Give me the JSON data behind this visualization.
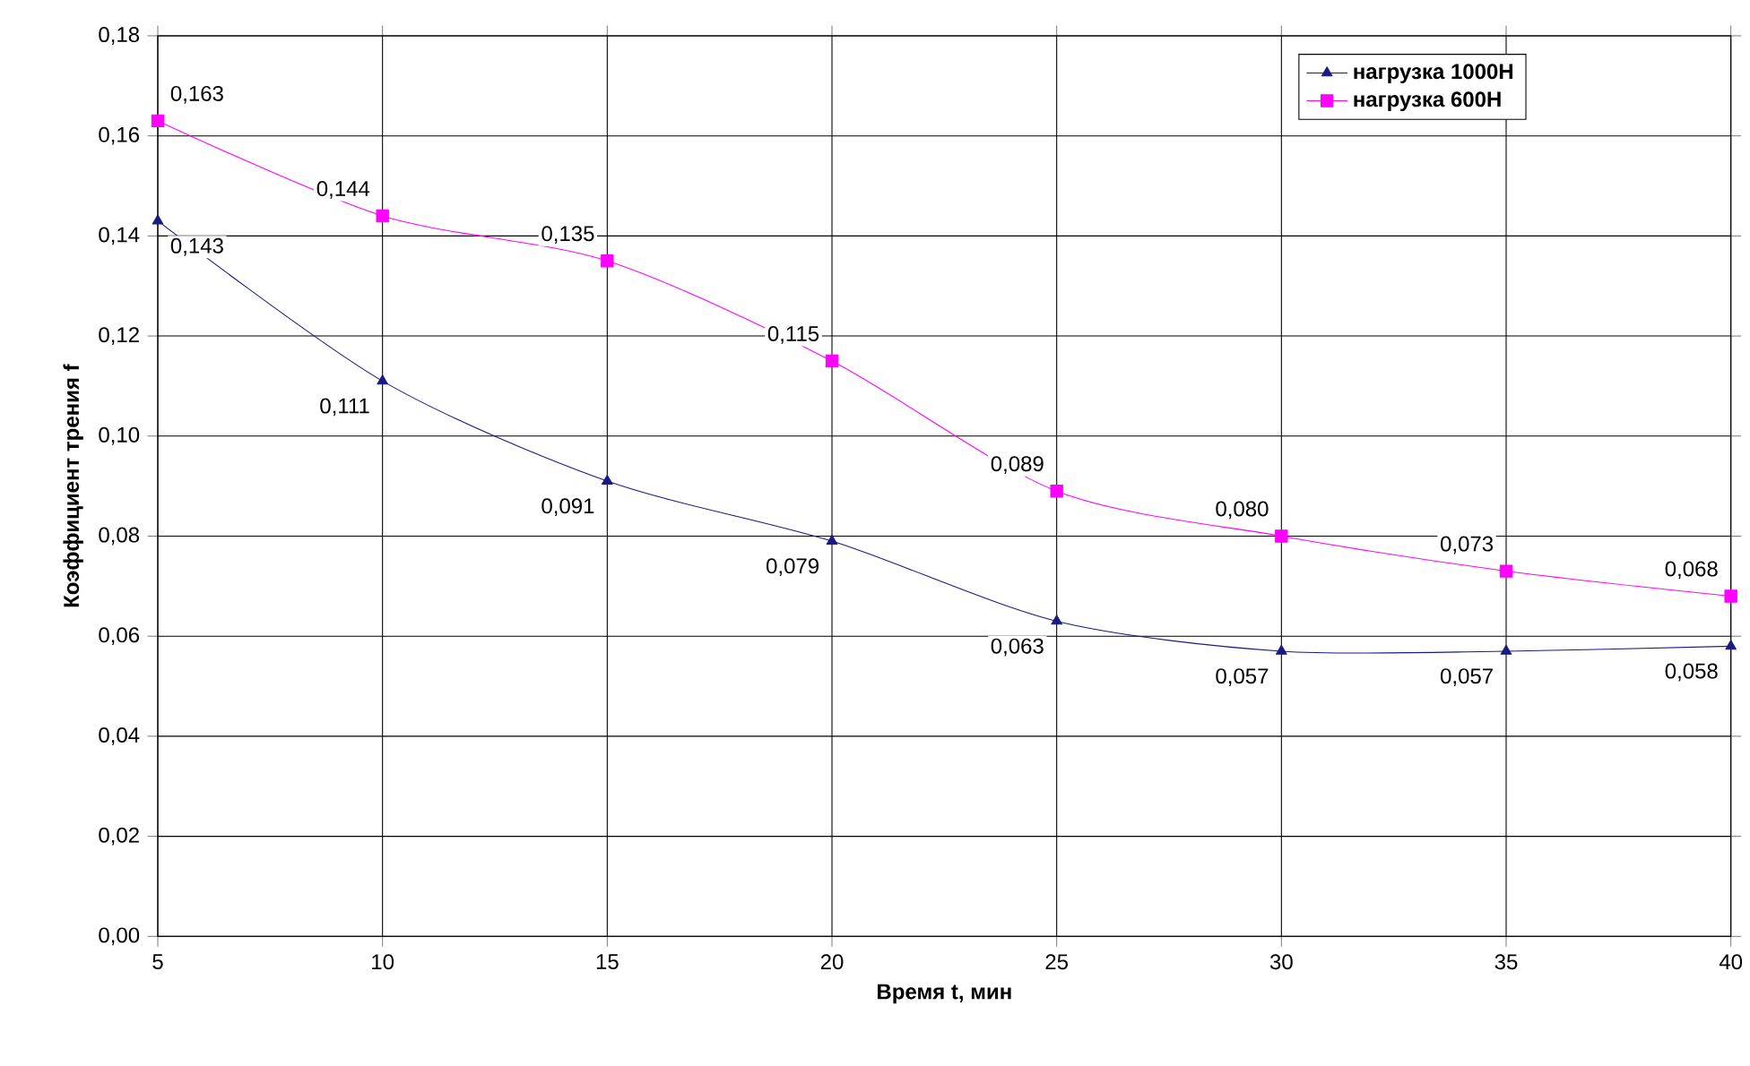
{
  "chart_data": {
    "type": "line",
    "xlabel": "Время t, мин",
    "ylabel": "Коэффициент трения f",
    "x": [
      5,
      10,
      15,
      20,
      25,
      30,
      35,
      40
    ],
    "series": [
      {
        "name": "нагрузка 1000Н",
        "color": "#1a1a80",
        "marker": "triangle",
        "values": [
          0.143,
          0.111,
          0.091,
          0.079,
          0.063,
          0.057,
          0.057,
          0.058
        ],
        "value_labels": [
          "0,143",
          "0,111",
          "0,091",
          "0,079",
          "0,063",
          "0,057",
          "0,057",
          "0,058"
        ]
      },
      {
        "name": "нагрузка 600Н",
        "color": "#ff00ff",
        "marker": "square",
        "values": [
          0.163,
          0.144,
          0.135,
          0.115,
          0.089,
          0.08,
          0.073,
          0.068
        ],
        "value_labels": [
          "0,163",
          "0,144",
          "0,135",
          "0,115",
          "0,089",
          "0,080",
          "0,073",
          "0,068"
        ]
      }
    ],
    "xlim": [
      5,
      40
    ],
    "xticks": [
      5,
      10,
      15,
      20,
      25,
      30,
      35,
      40
    ],
    "ylim": [
      0,
      0.18
    ],
    "yticks": [
      {
        "value": 0,
        "label": "0,00"
      },
      {
        "value": 0.02,
        "label": "0,02"
      },
      {
        "value": 0.04,
        "label": "0,04"
      },
      {
        "value": 0.06,
        "label": "0,06"
      },
      {
        "value": 0.08,
        "label": "0,08"
      },
      {
        "value": 0.1,
        "label": "0,10"
      },
      {
        "value": 0.12,
        "label": "0,12"
      },
      {
        "value": 0.14,
        "label": "0,14"
      },
      {
        "value": 0.16,
        "label": "0,16"
      },
      {
        "value": 0.18,
        "label": "0,18"
      }
    ],
    "grid": true,
    "legend": "top right",
    "line_style": "solid"
  }
}
